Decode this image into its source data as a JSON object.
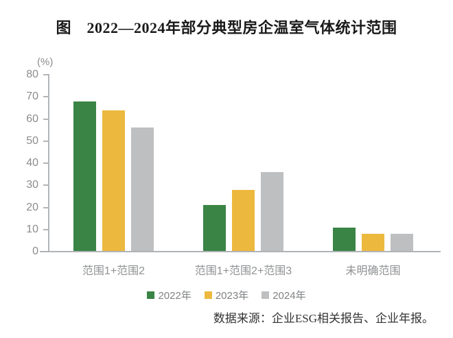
{
  "title": "图　2022—2024年部分典型房企温室气体统计范围",
  "source_note": "数据来源：企业ESG相关报告、企业年报。",
  "chart_data": {
    "type": "bar",
    "title": "图　2022—2024年部分典型房企温室气体统计范围",
    "unit_label": "(%)",
    "xlabel": "",
    "ylabel": "(%)",
    "categories": [
      "范围1+范围2",
      "范围1+范围2+范围3",
      "未明确范围"
    ],
    "series": [
      {
        "name": "2022年",
        "color": "#3A8445",
        "values": [
          68,
          21,
          11
        ]
      },
      {
        "name": "2023年",
        "color": "#ECB93E",
        "values": [
          64,
          28,
          8
        ]
      },
      {
        "name": "2024年",
        "color": "#BDBFC1",
        "values": [
          56,
          36,
          8
        ]
      }
    ],
    "ylim": [
      0,
      80
    ],
    "y_tick_step": 10,
    "y_tick_labels": [
      "0",
      "10",
      "20",
      "30",
      "40",
      "50",
      "60",
      "70",
      "80"
    ],
    "grid": false,
    "legend_position": "bottom",
    "colors": {
      "axis_line": "#B2B5B8",
      "tick_label": "#8C8C8C",
      "category_label": "#8F9193",
      "legend_label": "#7F8284",
      "title": "#1A1A1A",
      "source": "#333333"
    }
  }
}
